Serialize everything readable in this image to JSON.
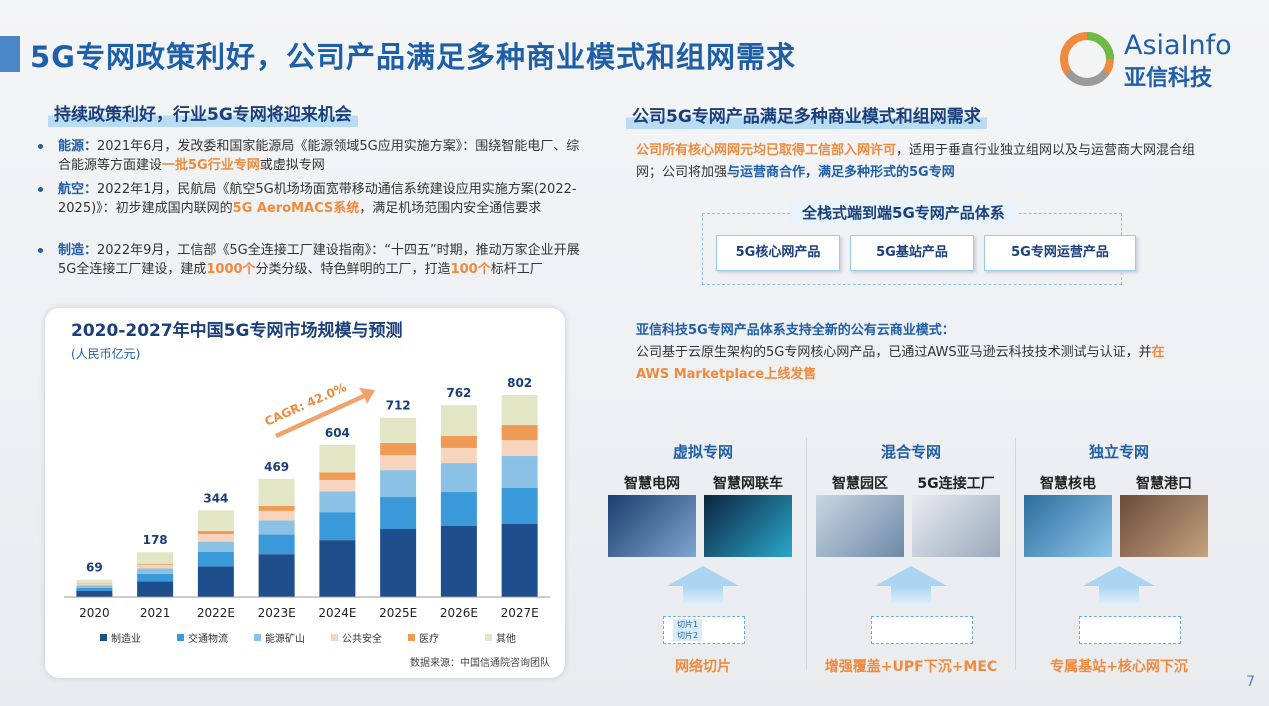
{
  "header": {
    "title": "5G专网政策利好，公司产品满足多种商业模式和组网需求",
    "brand": "AsiaInfo",
    "brand_cn": "亚信科技"
  },
  "left": {
    "heading": "持续政策利好，行业5G专网将迎来机会",
    "bullets": [
      {
        "parts": [
          "能源：",
          "2021年6月，发改委和国家能源局《能源领域5G应用实施方案》：围绕智能电厂、综合能源等方面建设",
          "一批5G行业专网",
          "或虚拟专网"
        ]
      },
      {
        "parts": [
          "航空：",
          "2022年1月，民航局《航空5G机场场面宽带移动通信系统建设应用实施方案(2022-2025)》：初步建成国内联网的",
          "5G AeroMACS系统",
          "，满足机场范围内安全通信要求"
        ]
      },
      {
        "parts": [
          "制造：",
          "2022年9月，工信部《5G全连接工厂建设指南》：“十四五”时期，推动万家企业开展5G全连接工厂建设，建成",
          "1000个",
          "分类分级、特色鲜明的工厂，打造",
          "100个",
          "标杆工厂"
        ]
      }
    ]
  },
  "chart_data": {
    "type": "stacked-bar",
    "title": "2020-2027年中国5G专网市场规模与预测",
    "subtitle": "(人民币亿元)",
    "annotation": "CAGR: 42.0%",
    "source": "数据来源：中国信通院咨询团队",
    "categories": [
      "2020",
      "2021",
      "2022E",
      "2023E",
      "2024E",
      "2025E",
      "2026E",
      "2027E"
    ],
    "totals": [
      69,
      178,
      344,
      469,
      604,
      712,
      762,
      802
    ],
    "ylim": [
      0,
      850
    ],
    "series": [
      {
        "name": "制造业",
        "color": "#1f4e8c",
        "values": [
          25,
          62,
          122,
          170,
          226,
          270,
          282,
          290
        ]
      },
      {
        "name": "交通物流",
        "color": "#3a9ad9",
        "values": [
          12,
          30,
          58,
          78,
          111,
          127,
          135,
          143
        ]
      },
      {
        "name": "能源矿山",
        "color": "#8cc1e6",
        "values": [
          10,
          22,
          40,
          56,
          83,
          107,
          115,
          127
        ]
      },
      {
        "name": "公共安全",
        "color": "#f7d4bd",
        "values": [
          6,
          14,
          30,
          38,
          45,
          60,
          60,
          63
        ]
      },
      {
        "name": "医疗",
        "color": "#ef9a55",
        "values": [
          2,
          4,
          12,
          20,
          30,
          48,
          48,
          60
        ]
      },
      {
        "name": "其他",
        "color": "#e2e6c5",
        "values": [
          14,
          46,
          82,
          107,
          109,
          100,
          122,
          119
        ]
      }
    ]
  },
  "right": {
    "heading": "公司5G专网产品满足多种商业模式和组网需求",
    "para1": [
      "公司所有核心网网元均已取得工信部入网许可",
      "，适用于垂直行业独立组网以及与运营商大网混合组网；公司将加强",
      "与运营商合作，满足多种形式的5G专网"
    ],
    "products": {
      "title": "全栈式端到端5G专网产品体系",
      "items": [
        "5G核心网产品",
        "5G基站产品",
        "5G专网运营产品"
      ]
    },
    "para2": {
      "title": "亚信科技5G专网产品体系支持全新的公有云商业模式：",
      "body": "公司基于云原生架构的5G专网核心网产品，已通过AWS亚马逊云科技技术测试与认证，",
      "highlight_prefix": "并",
      "highlight": "在AWS Marketplace上线发售"
    },
    "columns": [
      {
        "title": "虚拟专网",
        "scenes": [
          "智慧电网",
          "智慧网联车"
        ],
        "icons": [
          "切片1",
          "切片2"
        ],
        "label": "网络切片"
      },
      {
        "title": "混合专网",
        "scenes": [
          "智慧园区",
          "5G连接工厂"
        ],
        "label": "增强覆盖+UPF下沉+MEC"
      },
      {
        "title": "独立专网",
        "scenes": [
          "智慧核电",
          "智慧港口"
        ],
        "label": "专属基站+核心网下沉"
      }
    ]
  },
  "page_number": "7"
}
